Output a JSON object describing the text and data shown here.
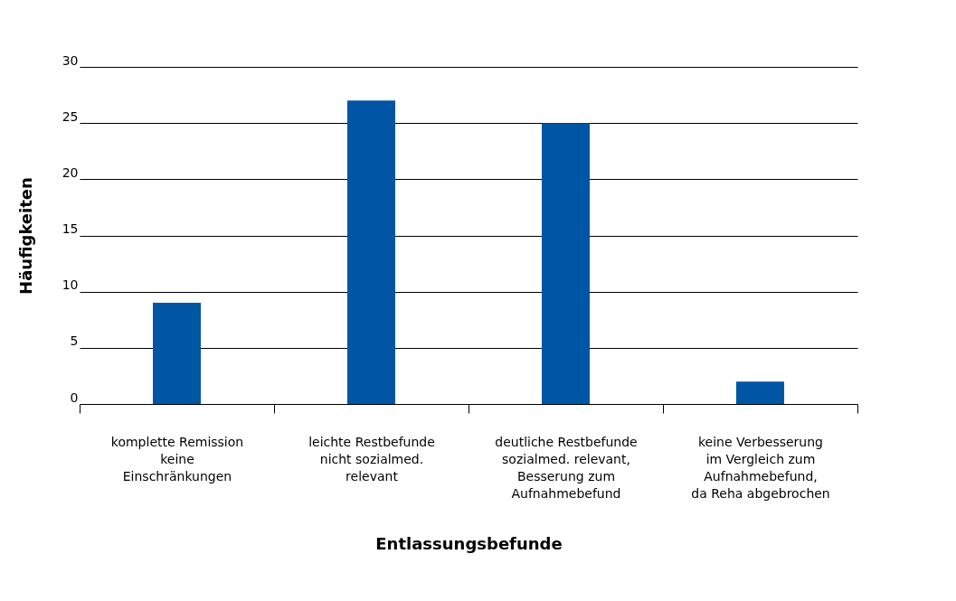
{
  "chart_data": {
    "type": "bar",
    "xlabel": "Entlassungsbefunde",
    "ylabel": "Häufigkeiten",
    "categories": [
      "komplette Remission\nkeine\nEinschränkungen",
      "leichte Restbefunde\nnicht sozialmed.\nrelevant",
      "deutliche Restbefunde\nsozialmed. relevant,\nBesserung zum\nAufnahmebefund",
      "keine Verbesserung\nim Vergleich zum\nAufnahmebefund,\nda Reha abgebrochen"
    ],
    "values": [
      9,
      27,
      25,
      2
    ],
    "color": "#0055a4",
    "ylim": [
      0,
      30
    ],
    "yticks": [
      0,
      5,
      10,
      15,
      20,
      25,
      30
    ],
    "grid": "y"
  }
}
